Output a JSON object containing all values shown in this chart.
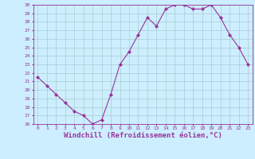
{
  "x": [
    0,
    1,
    2,
    3,
    4,
    5,
    6,
    7,
    8,
    9,
    10,
    11,
    12,
    13,
    14,
    15,
    16,
    17,
    18,
    19,
    20,
    21,
    22,
    23
  ],
  "y": [
    21.5,
    20.5,
    19.5,
    18.5,
    17.5,
    17.0,
    16.0,
    16.5,
    19.5,
    23.0,
    24.5,
    26.5,
    28.5,
    27.5,
    29.5,
    30.0,
    30.0,
    29.5,
    29.5,
    30.0,
    28.5,
    26.5,
    25.0,
    23.0
  ],
  "ylim": [
    16,
    30
  ],
  "xlim_min": -0.5,
  "xlim_max": 23.5,
  "yticks": [
    16,
    17,
    18,
    19,
    20,
    21,
    22,
    23,
    24,
    25,
    26,
    27,
    28,
    29,
    30
  ],
  "xticks": [
    0,
    1,
    2,
    3,
    4,
    5,
    6,
    7,
    8,
    9,
    10,
    11,
    12,
    13,
    14,
    15,
    16,
    17,
    18,
    19,
    20,
    21,
    22,
    23
  ],
  "xlabel": "Windchill (Refroidissement éolien,°C)",
  "line_color": "#993399",
  "marker": "D",
  "marker_size": 2.0,
  "bg_color": "#cceeff",
  "grid_color": "#aacccc",
  "tick_label_color": "#993399",
  "xlabel_color": "#993399",
  "tick_fontsize": 4.5,
  "xlabel_fontsize": 6.5,
  "linewidth": 0.8
}
